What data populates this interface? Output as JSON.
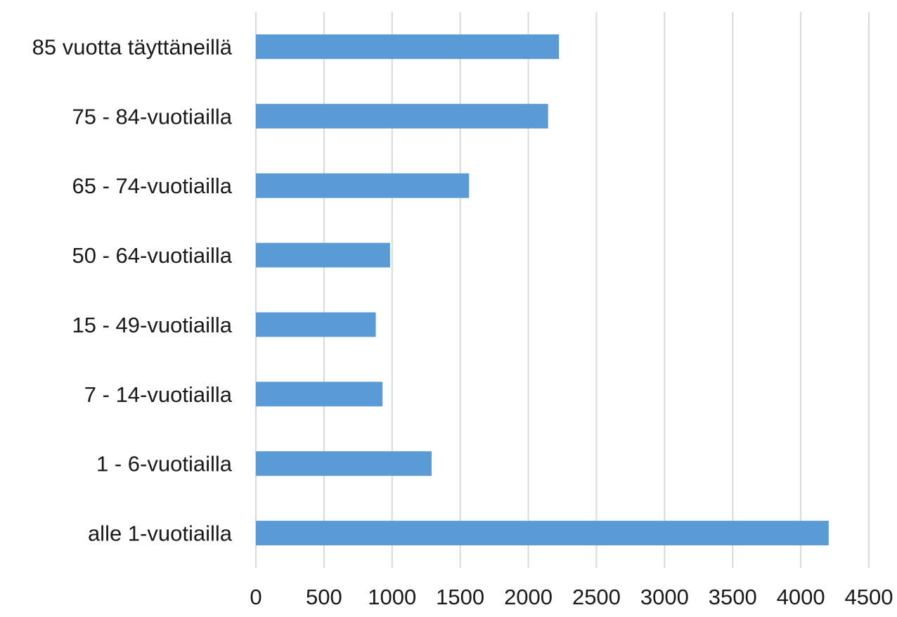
{
  "chart_data": {
    "type": "bar",
    "orientation": "horizontal",
    "categories": [
      "85 vuotta täyttäneillä",
      "75 - 84-vuotiailla",
      "65 - 74-vuotiailla",
      "50 - 64-vuotiailla",
      "15 - 49-vuotiailla",
      "7 - 14-vuotiailla",
      "1 - 6-vuotiailla",
      "alle 1-vuotiailla"
    ],
    "values": [
      2225,
      2145,
      1565,
      985,
      880,
      930,
      1290,
      4205
    ],
    "xlim": [
      0,
      4500
    ],
    "x_ticks": [
      0,
      500,
      1000,
      1500,
      2000,
      2500,
      3000,
      3500,
      4000,
      4500
    ],
    "grid": "vertical",
    "legend": "none",
    "title": "",
    "xlabel": "",
    "ylabel": "",
    "colors": {
      "bar": "#5b9bd5",
      "grid": "#d9d9d9"
    }
  }
}
